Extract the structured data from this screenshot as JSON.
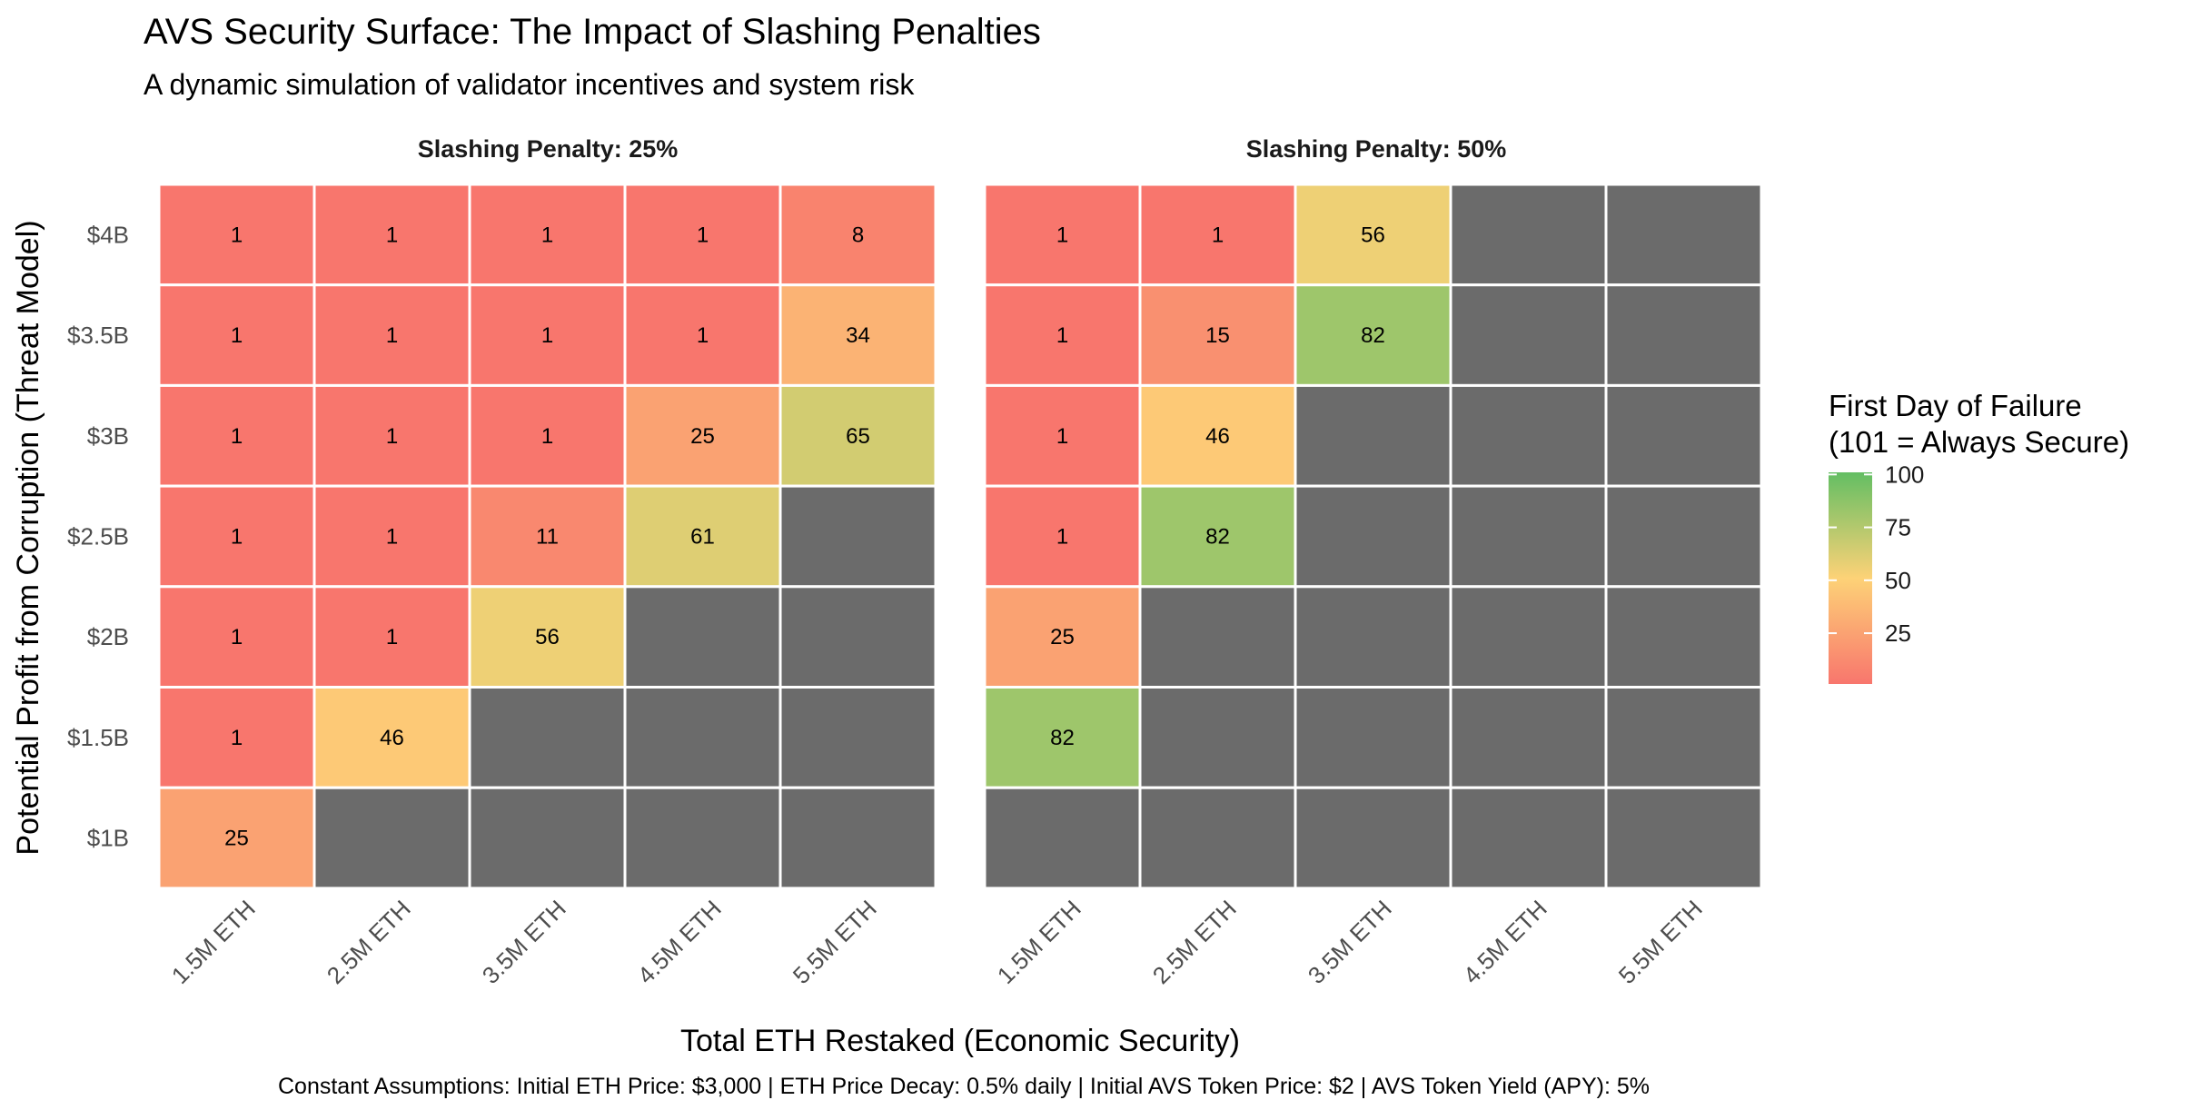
{
  "chart_data": {
    "type": "heatmap",
    "title": "AVS Security Surface: The Impact of Slashing Penalties",
    "subtitle": "A dynamic simulation of validator incentives and system risk",
    "xlabel": "Total ETH Restaked (Economic Security)",
    "ylabel": "Potential Profit from Corruption (Threat Model)",
    "caption": "Constant Assumptions: Initial ETH Price: $3,000 | ETH Price Decay: 0.5% daily | Initial AVS Token Price: $2 | AVS Token Yield (APY): 5%",
    "x_categories": [
      "1.5M ETH",
      "2.5M ETH",
      "3.5M ETH",
      "4.5M ETH",
      "5.5M ETH"
    ],
    "y_categories": [
      "$4B",
      "$3.5B",
      "$3B",
      "$2.5B",
      "$2B",
      "$1.5B",
      "$1B"
    ],
    "panels": [
      {
        "label": "Slashing Penalty: 25%",
        "values": [
          [
            1,
            1,
            1,
            1,
            8
          ],
          [
            1,
            1,
            1,
            1,
            34
          ],
          [
            1,
            1,
            1,
            25,
            65
          ],
          [
            1,
            1,
            11,
            61,
            null
          ],
          [
            1,
            1,
            56,
            null,
            null
          ],
          [
            1,
            46,
            null,
            null,
            null
          ],
          [
            25,
            null,
            null,
            null,
            null
          ]
        ]
      },
      {
        "label": "Slashing Penalty: 50%",
        "values": [
          [
            1,
            1,
            56,
            null,
            null
          ],
          [
            1,
            15,
            82,
            null,
            null
          ],
          [
            1,
            46,
            null,
            null,
            null
          ],
          [
            1,
            82,
            null,
            null,
            null
          ],
          [
            25,
            null,
            null,
            null,
            null
          ],
          [
            82,
            null,
            null,
            null,
            null
          ],
          [
            null,
            null,
            null,
            null,
            null
          ]
        ]
      }
    ],
    "legend": {
      "title_line1": "First Day of Failure",
      "title_line2": "(101 = Always Secure)",
      "ticks": [
        100,
        75,
        50,
        25
      ],
      "range": [
        1,
        101
      ],
      "colors": [
        "#f8766d",
        "#fdd277",
        "#63be63"
      ],
      "placement": "right"
    },
    "na_color": "#6b6b6b",
    "grid": false
  }
}
